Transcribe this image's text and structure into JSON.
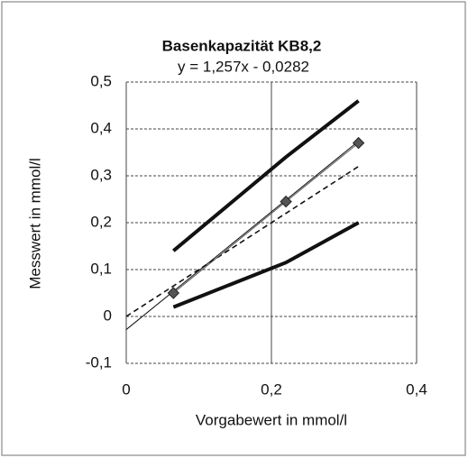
{
  "chart_data": {
    "type": "line",
    "title": "Basenkapazität KB8,2",
    "subtitle": "y = 1,257x - 0,0282",
    "x_label": "Vorgabewert in mmol/l",
    "y_label": "Messwert in mmol/l",
    "xlim": [
      0,
      0.4
    ],
    "ylim": [
      -0.1,
      0.5
    ],
    "xticks": [
      0,
      {
        "value": 0.2,
        "label": "0,2"
      },
      {
        "value": 0.4,
        "label": "0,4"
      }
    ],
    "yticks": [
      {
        "value": -0.1,
        "label": "-0,1"
      },
      0,
      {
        "value": 0.1,
        "label": "0,1"
      },
      {
        "value": 0.2,
        "label": "0,2"
      },
      {
        "value": 0.3,
        "label": "0,3"
      },
      {
        "value": 0.4,
        "label": "0,4"
      },
      {
        "value": 0.5,
        "label": "0,5"
      }
    ],
    "grid": true,
    "series": [
      {
        "x": [
          0.065,
          0.22,
          0.32
        ],
        "values": [
          0.14,
          0.34,
          0.46
        ],
        "color": "#111111",
        "width": 4
      },
      {
        "x": [
          0.065,
          0.22,
          0.32
        ],
        "values": [
          0.02,
          0.115,
          0.2
        ],
        "color": "#111111",
        "width": 4
      },
      {
        "x": [
          0,
          0.32
        ],
        "values": [
          0,
          0.32
        ],
        "color": "#111111",
        "width": 1.6,
        "dash": true
      },
      {
        "x": [
          0,
          0.32
        ],
        "values": [
          -0.028,
          0.374
        ],
        "color": "#111111",
        "width": 1
      },
      {
        "x": [
          0.065,
          0.22,
          0.32
        ],
        "values": [
          0.05,
          0.245,
          0.37
        ],
        "color": "#555555",
        "width": 1,
        "marker": "diamond"
      }
    ]
  }
}
